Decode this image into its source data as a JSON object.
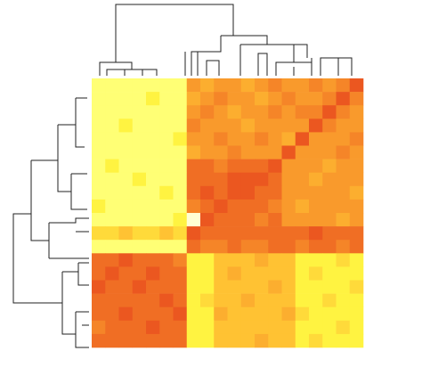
{
  "chart_data": {
    "type": "heatmap",
    "zlim": [
      0,
      10
    ],
    "colorscale": [
      [
        0,
        "#ffffd4"
      ],
      [
        1.5,
        "#ffff45"
      ],
      [
        4,
        "#ffc233"
      ],
      [
        6.5,
        "#f7902a"
      ],
      [
        10,
        "#e6401c"
      ]
    ],
    "z": [
      [
        1,
        1,
        1,
        1,
        1,
        1,
        1,
        6,
        5,
        6,
        6,
        5,
        6,
        7,
        6,
        6,
        7,
        6,
        7,
        9
      ],
      [
        1,
        1,
        1,
        1,
        2,
        1,
        1,
        5,
        6,
        7,
        6,
        6,
        5,
        6,
        7,
        6,
        6,
        7,
        9,
        7
      ],
      [
        1,
        1,
        1,
        1,
        1,
        1,
        1,
        6,
        7,
        6,
        5,
        6,
        6,
        7,
        6,
        7,
        7,
        9,
        7,
        6
      ],
      [
        1,
        1,
        2,
        1,
        1,
        1,
        1,
        7,
        6,
        6,
        6,
        5,
        6,
        6,
        6,
        6,
        9,
        7,
        6,
        6
      ],
      [
        1,
        1,
        1,
        1,
        1,
        1,
        2,
        6,
        6,
        7,
        6,
        6,
        7,
        6,
        5,
        9,
        6,
        6,
        6,
        7
      ],
      [
        1,
        1,
        1,
        1,
        1,
        1,
        1,
        5,
        6,
        6,
        7,
        6,
        6,
        6,
        9,
        6,
        6,
        6,
        7,
        6
      ],
      [
        1,
        2,
        1,
        1,
        1,
        1,
        1,
        8,
        8,
        7,
        8,
        8,
        8,
        9,
        6,
        6,
        6,
        5,
        6,
        6
      ],
      [
        1,
        1,
        1,
        2,
        1,
        1,
        1,
        8,
        8,
        8,
        9,
        9,
        9,
        8,
        6,
        6,
        5,
        6,
        6,
        6
      ],
      [
        1,
        1,
        1,
        1,
        1,
        2,
        1,
        8,
        9,
        8,
        9,
        9,
        8,
        8,
        6,
        6,
        6,
        6,
        6,
        5
      ],
      [
        2,
        1,
        1,
        1,
        1,
        1,
        1,
        7,
        8,
        9,
        8,
        8,
        8,
        7,
        6,
        5,
        6,
        6,
        6,
        6
      ],
      [
        1,
        1,
        1,
        1,
        1,
        1,
        2,
        0,
        9,
        8,
        8,
        8,
        7,
        8,
        6,
        6,
        6,
        6,
        5,
        6
      ],
      [
        3,
        3,
        4,
        3,
        3,
        4,
        3,
        9,
        8,
        8,
        8,
        8,
        8,
        8,
        8,
        8,
        9,
        8,
        8,
        8
      ],
      [
        1,
        1,
        1,
        1,
        1,
        1,
        1,
        8,
        7,
        7,
        8,
        7,
        7,
        8,
        8,
        7,
        8,
        8,
        7,
        8
      ],
      [
        8,
        8,
        9,
        8,
        8,
        8,
        7,
        2,
        2,
        4,
        4,
        4,
        5,
        4,
        4,
        2,
        2,
        2,
        3,
        2
      ],
      [
        8,
        9,
        8,
        8,
        9,
        8,
        8,
        2,
        2,
        4,
        5,
        4,
        4,
        4,
        4,
        2,
        3,
        2,
        2,
        2
      ],
      [
        9,
        8,
        8,
        9,
        8,
        8,
        8,
        2,
        2,
        4,
        4,
        4,
        4,
        5,
        4,
        2,
        2,
        2,
        2,
        3
      ],
      [
        8,
        8,
        8,
        8,
        8,
        9,
        8,
        2,
        3,
        4,
        4,
        5,
        4,
        4,
        4,
        2,
        2,
        3,
        2,
        2
      ],
      [
        8,
        8,
        9,
        8,
        8,
        8,
        9,
        2,
        2,
        5,
        4,
        4,
        4,
        4,
        5,
        3,
        2,
        2,
        2,
        2
      ],
      [
        7,
        8,
        8,
        8,
        9,
        8,
        8,
        2,
        2,
        4,
        4,
        4,
        4,
        4,
        4,
        2,
        2,
        2,
        3,
        2
      ],
      [
        8,
        8,
        8,
        8,
        8,
        8,
        8,
        2,
        2,
        4,
        4,
        4,
        5,
        4,
        4,
        2,
        3,
        2,
        2,
        2
      ]
    ]
  }
}
